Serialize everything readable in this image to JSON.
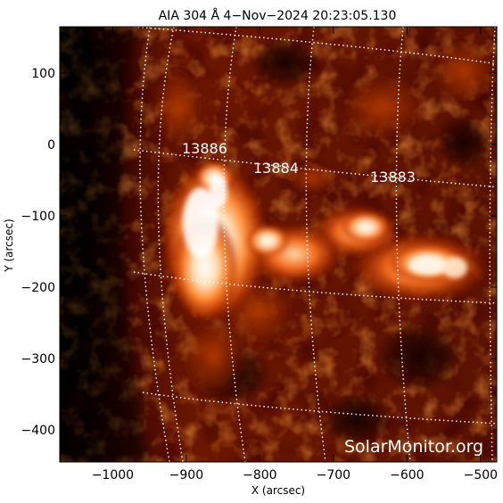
{
  "title": "AIA 304 Å   4−Nov−2024  20:23:05.130",
  "x_axis": {
    "label": "X (arcsec)",
    "ticks": [
      {
        "value": -1000,
        "label": "−1000"
      },
      {
        "value": -900,
        "label": "−900"
      },
      {
        "value": -800,
        "label": "−800"
      },
      {
        "value": -700,
        "label": "−700"
      },
      {
        "value": -600,
        "label": "−600"
      },
      {
        "value": -500,
        "label": "−500"
      }
    ],
    "range": [
      -1072,
      -478
    ]
  },
  "y_axis": {
    "label": "Y (arcsec)",
    "ticks": [
      {
        "value": 100,
        "label": "100"
      },
      {
        "value": 0,
        "label": "0"
      },
      {
        "value": -100,
        "label": "−100"
      },
      {
        "value": -200,
        "label": "−200"
      },
      {
        "value": -300,
        "label": "−300"
      },
      {
        "value": -400,
        "label": "−400"
      }
    ],
    "range": [
      -445,
      165
    ]
  },
  "active_regions": [
    {
      "number": "13886",
      "x": -856,
      "y": -5
    },
    {
      "number": "13884",
      "x": -757,
      "y": -30
    },
    {
      "number": "13883",
      "x": -628,
      "y": -40
    }
  ],
  "watermark": "SolarMonitor.org",
  "colors": {
    "background": "#ffffff",
    "image_dark": "#000000",
    "grid": "#ffffff"
  }
}
